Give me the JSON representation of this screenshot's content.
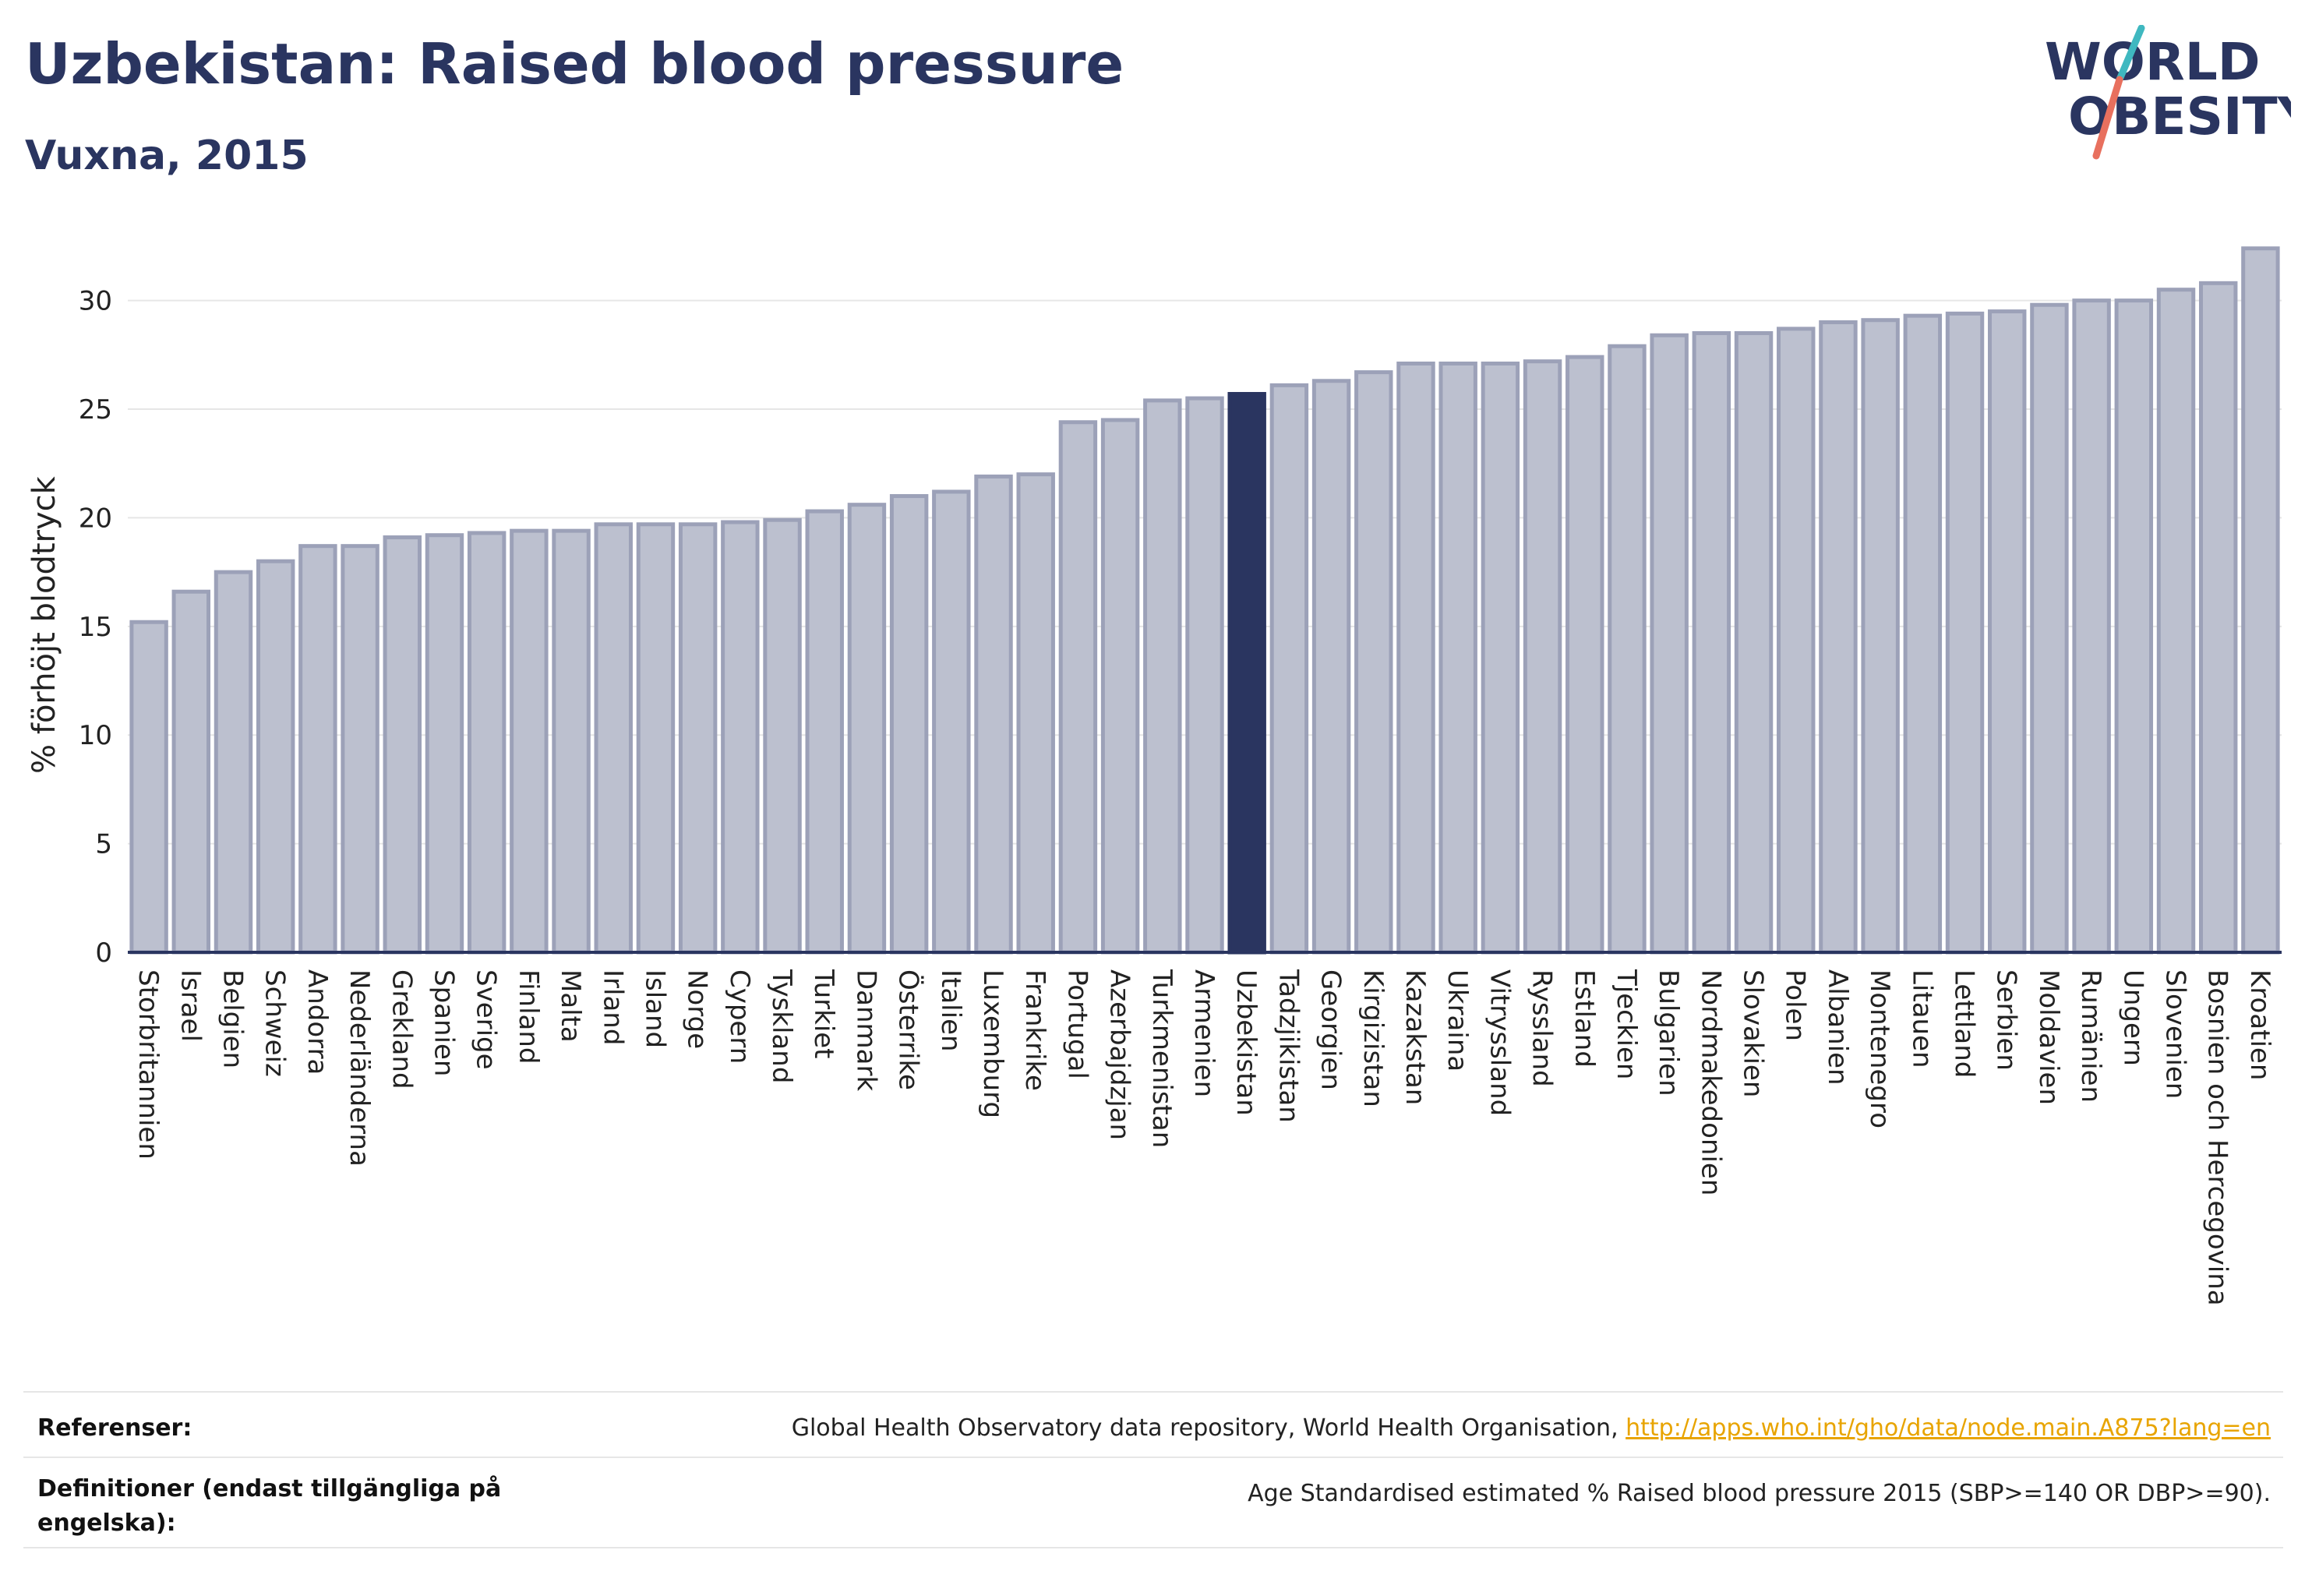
{
  "header": {
    "title": "Uzbekistan: Raised blood pressure",
    "subtitle": "Vuxna, 2015"
  },
  "logo": {
    "line1": "WORLD",
    "line2": "OBESITY"
  },
  "colors": {
    "highlight": "#2a3560",
    "bar_fill": "#bcc0cf",
    "bar_stroke": "#9ca1b8",
    "grid": "#e6e6e6",
    "logo_teal": "#3fb8c0",
    "logo_coral": "#e8705e"
  },
  "chart_data": {
    "type": "bar",
    "ylabel": "% förhöjt blodtryck",
    "ylim": [
      0,
      33
    ],
    "yticks": [
      0,
      5,
      10,
      15,
      20,
      25,
      30
    ],
    "grid": true,
    "highlight": "Uzbekistan",
    "categories": [
      "Storbritannien",
      "Israel",
      "Belgien",
      "Schweiz",
      "Andorra",
      "Nederländerna",
      "Grekland",
      "Spanien",
      "Sverige",
      "Finland",
      "Malta",
      "Irland",
      "Island",
      "Norge",
      "Cypern",
      "Tyskland",
      "Turkiet",
      "Danmark",
      "Österrike",
      "Italien",
      "Luxemburg",
      "Frankrike",
      "Portugal",
      "Azerbajdzjan",
      "Turkmenistan",
      "Armenien",
      "Uzbekistan",
      "Tadzjikistan",
      "Georgien",
      "Kirgizistan",
      "Kazakstan",
      "Ukraina",
      "Vitryssland",
      "Ryssland",
      "Estland",
      "Tjeckien",
      "Bulgarien",
      "Nordmakedonien",
      "Slovakien",
      "Polen",
      "Albanien",
      "Montenegro",
      "Litauen",
      "Lettland",
      "Serbien",
      "Moldavien",
      "Rumänien",
      "Ungern",
      "Slovenien",
      "Bosnien och Hercegovina",
      "Kroatien"
    ],
    "values": [
      15.2,
      16.6,
      17.5,
      18.0,
      18.7,
      18.7,
      19.1,
      19.2,
      19.3,
      19.4,
      19.4,
      19.7,
      19.7,
      19.7,
      19.8,
      19.9,
      20.3,
      20.6,
      21.0,
      21.2,
      21.9,
      22.0,
      24.4,
      24.5,
      25.4,
      25.5,
      25.7,
      26.1,
      26.3,
      26.7,
      27.1,
      27.1,
      27.1,
      27.2,
      27.4,
      27.9,
      28.4,
      28.5,
      28.5,
      28.7,
      29.0,
      29.1,
      29.3,
      29.4,
      29.5,
      29.8,
      30.0,
      30.0,
      30.5,
      30.8,
      32.4
    ]
  },
  "footer": {
    "references_label": "Referenser:",
    "references_text": "Global Health Observatory data repository, World Health Organisation, ",
    "references_link": "http://apps.who.int/gho/data/node.main.A875?lang=en",
    "definitions_label": "Definitioner (endast tillgängliga på engelska):",
    "definitions_text": "Age Standardised estimated % Raised blood pressure 2015 (SBP>=140 OR DBP>=90)."
  }
}
